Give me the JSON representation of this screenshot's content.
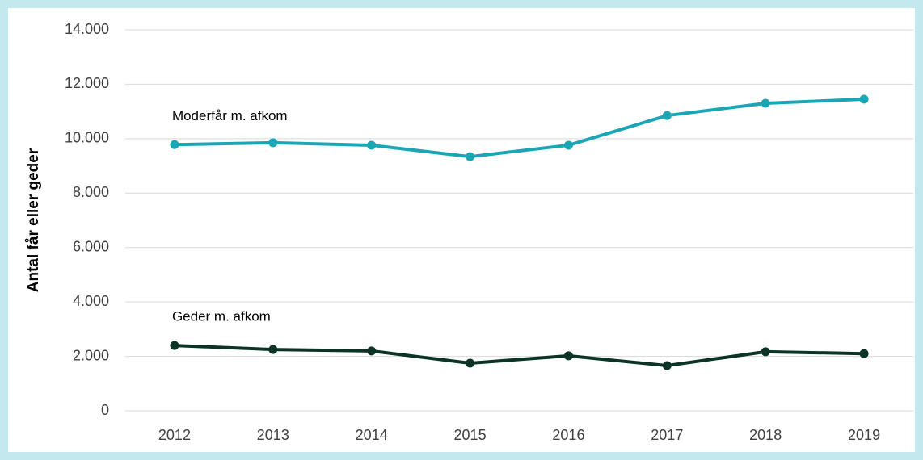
{
  "chart_data": {
    "type": "line",
    "y_label": "Antal får eller geder",
    "categories": [
      "2012",
      "2013",
      "2014",
      "2015",
      "2016",
      "2017",
      "2018",
      "2019"
    ],
    "series": [
      {
        "name": "Moderfår m. afkom",
        "color": "#1ba6b6",
        "values": [
          9780,
          9850,
          9760,
          9340,
          9760,
          10850,
          11300,
          11450
        ]
      },
      {
        "name": "Geder m. afkom",
        "color": "#0b3326",
        "values": [
          2400,
          2250,
          2200,
          1750,
          2020,
          1660,
          2170,
          2100
        ]
      }
    ],
    "ylim": [
      0,
      14000
    ],
    "yticks": [
      0,
      {
        "value": 2000,
        "label": "2.000"
      },
      {
        "value": 4000,
        "label": "4.000"
      },
      {
        "value": 6000,
        "label": "6.000"
      },
      {
        "value": 8000,
        "label": "8.000"
      },
      {
        "value": 10000,
        "label": "10.000"
      },
      {
        "value": 12000,
        "label": "12.000"
      },
      {
        "value": 14000,
        "label": "14.000"
      }
    ],
    "grid": true,
    "legend": "inline"
  }
}
